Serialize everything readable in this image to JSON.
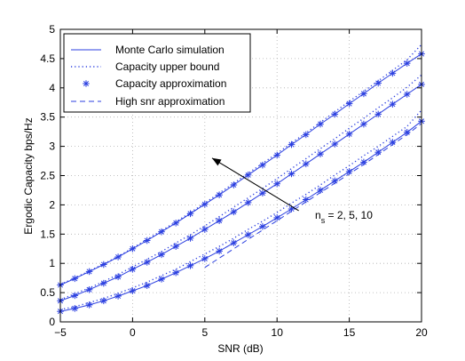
{
  "chart_data": {
    "type": "line",
    "title": "",
    "xlabel": "SNR (dB)",
    "ylabel": "Ergodic Capacity bps/Hz",
    "xlim": [
      -5,
      20
    ],
    "ylim": [
      0,
      5
    ],
    "xticks": [
      -5,
      0,
      5,
      10,
      15,
      20
    ],
    "yticks": [
      0,
      0.5,
      1,
      1.5,
      2,
      2.5,
      3,
      3.5,
      4,
      4.5,
      5
    ],
    "xtick_labels": [
      "−5",
      "0",
      "5",
      "10",
      "15",
      "20"
    ],
    "ytick_labels": [
      "0",
      "0.5",
      "1",
      "1.5",
      "2",
      "2.5",
      "3",
      "3.5",
      "4",
      "4.5",
      "5"
    ],
    "grid": true,
    "legend_position": "top-left",
    "color": "#2b3fe0",
    "legend": [
      {
        "label": "Monte Carlo simulation",
        "style": "solid"
      },
      {
        "label": "Capacity upper bound",
        "style": "dotted"
      },
      {
        "label": "Capacity approximation",
        "style": "star"
      },
      {
        "label": "High snr approximation",
        "style": "dashed"
      }
    ],
    "annotation": {
      "text": "n",
      "subscript": "s",
      "rest": " = 2, 5, 10",
      "arrow_from": [
        11.5,
        1.9
      ],
      "arrow_to": [
        5.5,
        2.8
      ]
    },
    "x": [
      -5,
      -4,
      -3,
      -2,
      -1,
      0,
      1,
      2,
      3,
      4,
      5,
      6,
      7,
      8,
      9,
      10,
      11,
      12,
      13,
      14,
      15,
      16,
      17,
      18,
      19,
      20
    ],
    "series": [
      {
        "group": "ns=10",
        "monte_carlo": [
          0.63,
          0.74,
          0.86,
          0.98,
          1.11,
          1.25,
          1.39,
          1.54,
          1.69,
          1.85,
          2.01,
          2.17,
          2.34,
          2.51,
          2.68,
          2.85,
          3.03,
          3.2,
          3.38,
          3.55,
          3.73,
          3.9,
          4.08,
          4.25,
          4.42,
          4.58
        ],
        "upper_bound": [
          0.64,
          0.75,
          0.87,
          0.99,
          1.12,
          1.26,
          1.41,
          1.56,
          1.71,
          1.87,
          2.03,
          2.2,
          2.37,
          2.54,
          2.71,
          2.88,
          3.06,
          3.23,
          3.41,
          3.59,
          3.77,
          3.94,
          4.12,
          4.3,
          4.48,
          4.74
        ],
        "approximation": [
          0.63,
          0.74,
          0.86,
          0.98,
          1.11,
          1.25,
          1.39,
          1.54,
          1.69,
          1.85,
          2.01,
          2.17,
          2.34,
          2.51,
          2.68,
          2.85,
          3.03,
          3.2,
          3.38,
          3.55,
          3.73,
          3.9,
          4.08,
          4.25,
          4.42,
          4.58
        ]
      },
      {
        "group": "ns=5",
        "monte_carlo": [
          0.36,
          0.45,
          0.55,
          0.66,
          0.77,
          0.9,
          1.02,
          1.15,
          1.29,
          1.43,
          1.58,
          1.73,
          1.88,
          2.04,
          2.2,
          2.36,
          2.53,
          2.7,
          2.87,
          3.04,
          3.21,
          3.38,
          3.55,
          3.72,
          3.89,
          4.06
        ],
        "upper_bound": [
          0.38,
          0.48,
          0.58,
          0.69,
          0.81,
          0.94,
          1.07,
          1.2,
          1.35,
          1.49,
          1.64,
          1.8,
          1.96,
          2.12,
          2.28,
          2.45,
          2.62,
          2.79,
          2.96,
          3.13,
          3.31,
          3.48,
          3.66,
          3.83,
          4.01,
          4.22
        ],
        "approximation": [
          0.36,
          0.45,
          0.55,
          0.66,
          0.77,
          0.9,
          1.02,
          1.15,
          1.29,
          1.43,
          1.58,
          1.73,
          1.88,
          2.04,
          2.2,
          2.36,
          2.53,
          2.7,
          2.87,
          3.04,
          3.21,
          3.38,
          3.55,
          3.72,
          3.89,
          4.06
        ]
      },
      {
        "group": "ns=2",
        "monte_carlo": [
          0.18,
          0.23,
          0.29,
          0.36,
          0.44,
          0.53,
          0.62,
          0.73,
          0.84,
          0.96,
          1.08,
          1.21,
          1.35,
          1.49,
          1.63,
          1.78,
          1.93,
          2.09,
          2.25,
          2.41,
          2.57,
          2.73,
          2.9,
          3.07,
          3.24,
          3.43
        ],
        "upper_bound": [
          0.21,
          0.26,
          0.33,
          0.4,
          0.49,
          0.58,
          0.68,
          0.79,
          0.9,
          1.03,
          1.16,
          1.29,
          1.43,
          1.58,
          1.72,
          1.87,
          2.03,
          2.18,
          2.34,
          2.51,
          2.67,
          2.84,
          3.0,
          3.17,
          3.34,
          3.62
        ],
        "approximation": [
          0.18,
          0.23,
          0.29,
          0.36,
          0.44,
          0.53,
          0.62,
          0.73,
          0.84,
          0.96,
          1.08,
          1.21,
          1.35,
          1.49,
          1.63,
          1.78,
          1.93,
          2.09,
          2.25,
          2.41,
          2.57,
          2.73,
          2.9,
          3.07,
          3.24,
          3.43
        ],
        "high_snr_x": [
          5,
          6,
          7,
          8,
          9,
          10,
          11,
          12,
          13,
          14,
          15,
          16,
          17,
          18,
          19,
          20
        ],
        "high_snr_y": [
          0.93,
          1.09,
          1.25,
          1.41,
          1.57,
          1.73,
          1.89,
          2.05,
          2.21,
          2.37,
          2.53,
          2.69,
          2.86,
          3.03,
          3.2,
          3.39
        ]
      }
    ]
  }
}
